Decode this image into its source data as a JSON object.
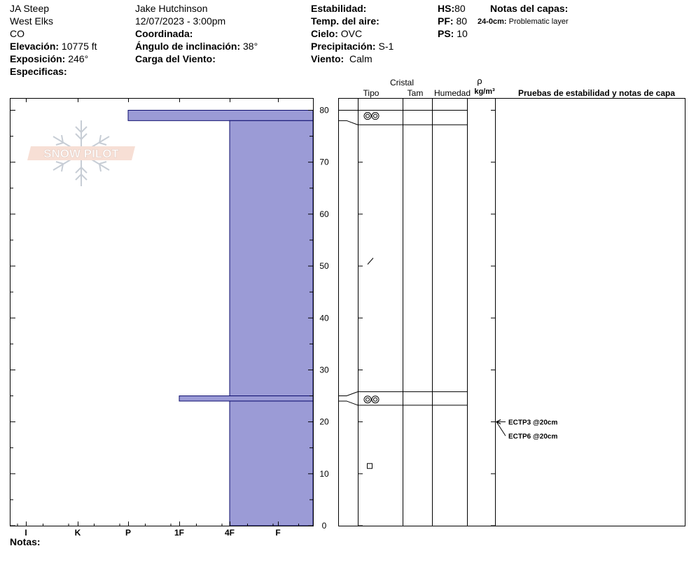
{
  "header": {
    "site": "JA Steep",
    "range": "West Elks",
    "state": "CO",
    "elevation_label": "Elevación:",
    "elevation_value": "10775 ft",
    "aspect_label": "Exposición:",
    "aspect_value": "246°",
    "specifics_label": "Especificas:",
    "observer": "Jake Hutchinson",
    "datetime": "12/07/2023 - 3:00pm",
    "coord_label": "Coordinada:",
    "slope_label": "Ángulo de inclinación:",
    "slope_value": "38°",
    "wind_load_label": "Carga del Viento:",
    "stability_label": "Estabilidad:",
    "air_temp_label": "Temp. del aire:",
    "sky_label": "Cielo:",
    "sky_value": "OVC",
    "precip_label": "Precipitación:",
    "precip_value": "S-1",
    "wind_label": "Viento:",
    "wind_value": "Calm",
    "hs_label": "HS:",
    "hs_value": "80",
    "pf_label": "PF:",
    "pf_value": "80",
    "ps_label": "PS:",
    "ps_value": "10",
    "layer_notes_label": "Notas del capas:",
    "layer_note_depth": "24-0cm:",
    "layer_note_text": "Problematic layer"
  },
  "notes_label": "Notas:",
  "watermark": "SNOW PILOT",
  "columns": {
    "crystal": "Cristal",
    "type": "Tipo",
    "size": "Tam",
    "moisture": "Humedad",
    "density_symbol": "ρ",
    "density_unit": "kg/m³",
    "tests": "Pruebas de estabilidad y notas de capa"
  },
  "chart_data": {
    "type": "bar",
    "title": "",
    "y_axis": {
      "label": "",
      "range": [
        0,
        80
      ],
      "ticks": [
        0,
        10,
        20,
        30,
        40,
        50,
        60,
        70,
        80
      ],
      "unit": "cm"
    },
    "hardness_scale": [
      "I",
      "K",
      "P",
      "1F",
      "4F",
      "F"
    ],
    "hand_hardness_layers": [
      {
        "top": 80,
        "bottom": 78,
        "hardness": "P"
      },
      {
        "top": 78,
        "bottom": 25,
        "hardness": "4F"
      },
      {
        "top": 25,
        "bottom": 24,
        "hardness": "1F"
      },
      {
        "top": 24,
        "bottom": 0,
        "hardness": "4F"
      }
    ],
    "crystal_layers": [
      {
        "top": 80,
        "bottom": 77.2,
        "symbol": "rounded-grains",
        "at": 78.9
      },
      {
        "top": 77.2,
        "bottom": 25.8,
        "symbol": "decomposing-fragments",
        "at": 51
      },
      {
        "top": 25.8,
        "bottom": 23.2,
        "symbol": "rounded-grains",
        "at": 24.3
      },
      {
        "top": 23.2,
        "bottom": 0,
        "symbol": "faceted-crystals",
        "at": 11.5
      }
    ],
    "layer_boundaries_profile": [
      78,
      25,
      24
    ],
    "stability_tests": [
      {
        "label": "ECTP3 @20cm",
        "depth": 20
      },
      {
        "label": "ECTP6 @20cm",
        "depth": 20
      }
    ],
    "colors": {
      "hardness_fill": "#9b9bd6",
      "hardness_stroke": "#0c0c6e"
    }
  }
}
